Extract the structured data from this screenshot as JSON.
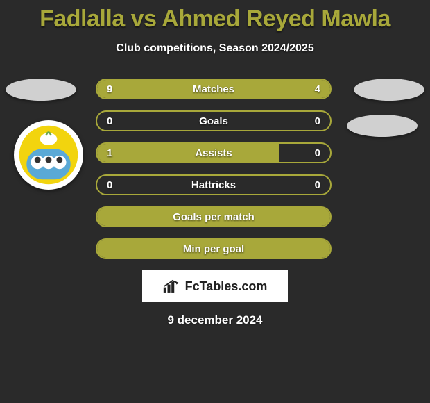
{
  "title": "Fadlalla vs Ahmed Reyed Mawla",
  "subtitle": "Club competitions, Season 2024/2025",
  "accent_color": "#a8a83a",
  "background_color": "#2a2a2a",
  "text_color": "#ffffff",
  "ellipse_color": "#d0d0d0",
  "logo_box_bg": "#ffffff",
  "logo_text": "FcTables.com",
  "logo_text_color": "#222222",
  "date": "9 december 2024",
  "club_logo_colors": {
    "bg": "#ffffff",
    "yellow": "#f2d40e",
    "blue": "#5aa9d6",
    "leaf": "#6aa84f"
  },
  "rows": [
    {
      "label": "Matches",
      "left": "9",
      "right": "4",
      "left_fill_pct": 68,
      "right_fill_pct": 32,
      "show_values": true,
      "full_fill": false
    },
    {
      "label": "Goals",
      "left": "0",
      "right": "0",
      "left_fill_pct": 0,
      "right_fill_pct": 0,
      "show_values": true,
      "full_fill": false
    },
    {
      "label": "Assists",
      "left": "1",
      "right": "0",
      "left_fill_pct": 78,
      "right_fill_pct": 0,
      "show_values": true,
      "full_fill": false
    },
    {
      "label": "Hattricks",
      "left": "0",
      "right": "0",
      "left_fill_pct": 0,
      "right_fill_pct": 0,
      "show_values": true,
      "full_fill": false
    },
    {
      "label": "Goals per match",
      "left": "",
      "right": "",
      "left_fill_pct": 0,
      "right_fill_pct": 0,
      "show_values": false,
      "full_fill": true
    },
    {
      "label": "Min per goal",
      "left": "",
      "right": "",
      "left_fill_pct": 0,
      "right_fill_pct": 0,
      "show_values": false,
      "full_fill": true
    }
  ]
}
